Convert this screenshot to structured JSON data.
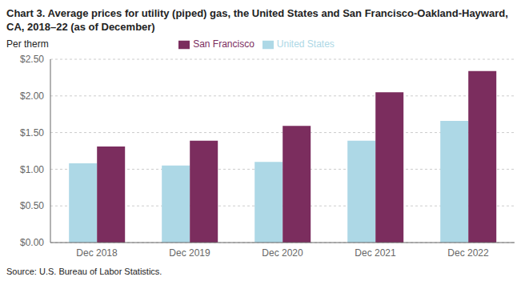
{
  "chart_data": {
    "type": "bar",
    "title": "Chart 3. Average prices for utility (piped) gas, the United States and San Francisco-Oakland-Hayward, CA, 2018–22 (as of December)",
    "y_label": "Per therm",
    "annotations": [
      "Source: U.S. Bureau of Labor Statistics."
    ],
    "categories": [
      "Dec 2018",
      "Dec 2019",
      "Dec 2020",
      "Dec 2021",
      "Dec 2022"
    ],
    "series": [
      {
        "name": "United States",
        "color": "#add8e6",
        "values": [
          1.08,
          1.05,
          1.1,
          1.39,
          1.66
        ]
      },
      {
        "name": "San Francisco",
        "color": "#7B2D5E",
        "values": [
          1.31,
          1.39,
          1.59,
          2.05,
          2.34
        ]
      }
    ],
    "ylim": [
      0,
      2.5
    ],
    "yticks": [
      {
        "value": 0.0,
        "label": "$0.00"
      },
      {
        "value": 0.5,
        "label": "$0.50"
      },
      {
        "value": 1.0,
        "label": "$1.00"
      },
      {
        "value": 1.5,
        "label": "$1.50"
      },
      {
        "value": 2.0,
        "label": "$2.00"
      },
      {
        "value": 2.5,
        "label": "$2.50"
      }
    ],
    "grid": true,
    "legend": "top"
  }
}
